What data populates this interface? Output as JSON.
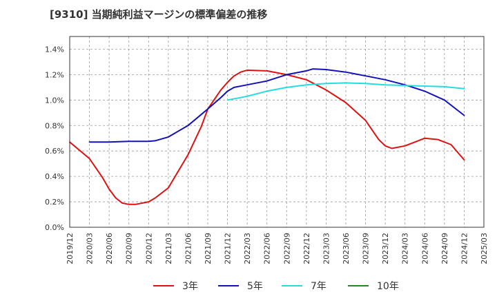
{
  "chart_data": {
    "type": "line",
    "title": "[9310]  当期純利益マージンの標準偏差の推移",
    "xlabel": "",
    "ylabel": "",
    "ylim": [
      0,
      1.5
    ],
    "y_ticks": [
      "0.0%",
      "0.2%",
      "0.4%",
      "0.6%",
      "0.8%",
      "1.0%",
      "1.2%",
      "1.4%"
    ],
    "y_tick_values": [
      0,
      0.2,
      0.4,
      0.6,
      0.8,
      1.0,
      1.2,
      1.4
    ],
    "x_ticks": [
      "2019/12",
      "2020/03",
      "2020/06",
      "2020/09",
      "2020/12",
      "2021/03",
      "2021/06",
      "2021/09",
      "2021/12",
      "2022/03",
      "2022/06",
      "2022/09",
      "2022/12",
      "2023/03",
      "2023/06",
      "2023/09",
      "2023/12",
      "2024/03",
      "2024/06",
      "2024/09",
      "2024/12",
      "2025/03"
    ],
    "grid": true,
    "legend_position": "bottom",
    "series": [
      {
        "name": "3年",
        "color": "#dd1111",
        "x": [
          "2019/12",
          "2020/03",
          "2020/05",
          "2020/06",
          "2020/07",
          "2020/08",
          "2020/09",
          "2020/10",
          "2020/12",
          "2021/01",
          "2021/03",
          "2021/06",
          "2021/08",
          "2021/09",
          "2021/11",
          "2021/12",
          "2022/01",
          "2022/02",
          "2022/03",
          "2022/06",
          "2022/09",
          "2022/12",
          "2023/03",
          "2023/06",
          "2023/09",
          "2023/11",
          "2023/12",
          "2024/01",
          "2024/03",
          "2024/05",
          "2024/06",
          "2024/08",
          "2024/10",
          "2024/12"
        ],
        "values": [
          0.67,
          0.54,
          0.39,
          0.3,
          0.23,
          0.19,
          0.18,
          0.18,
          0.2,
          0.23,
          0.31,
          0.57,
          0.79,
          0.93,
          1.08,
          1.14,
          1.19,
          1.22,
          1.235,
          1.23,
          1.2,
          1.16,
          1.08,
          0.98,
          0.84,
          0.69,
          0.64,
          0.62,
          0.64,
          0.68,
          0.7,
          0.69,
          0.65,
          0.53
        ]
      },
      {
        "name": "5年",
        "color": "#1111bb",
        "x": [
          "2020/03",
          "2020/06",
          "2020/09",
          "2020/12",
          "2021/01",
          "2021/03",
          "2021/06",
          "2021/09",
          "2021/11",
          "2021/12",
          "2022/01",
          "2022/03",
          "2022/06",
          "2022/09",
          "2022/12",
          "2023/01",
          "2023/03",
          "2023/06",
          "2023/09",
          "2023/12",
          "2024/03",
          "2024/06",
          "2024/09",
          "2024/12"
        ],
        "values": [
          0.67,
          0.67,
          0.675,
          0.675,
          0.68,
          0.71,
          0.8,
          0.93,
          1.02,
          1.07,
          1.1,
          1.12,
          1.15,
          1.2,
          1.23,
          1.245,
          1.24,
          1.22,
          1.19,
          1.16,
          1.12,
          1.07,
          1.0,
          0.88
        ]
      },
      {
        "name": "7年",
        "color": "#22dddd",
        "x": [
          "2021/12",
          "2022/03",
          "2022/06",
          "2022/09",
          "2022/12",
          "2023/03",
          "2023/06",
          "2023/09",
          "2023/12",
          "2024/03",
          "2024/06",
          "2024/09",
          "2024/12"
        ],
        "values": [
          1.0,
          1.03,
          1.07,
          1.1,
          1.12,
          1.13,
          1.135,
          1.13,
          1.12,
          1.115,
          1.11,
          1.105,
          1.09
        ]
      },
      {
        "name": "10年",
        "color": "#228822",
        "x": [],
        "values": []
      }
    ]
  }
}
